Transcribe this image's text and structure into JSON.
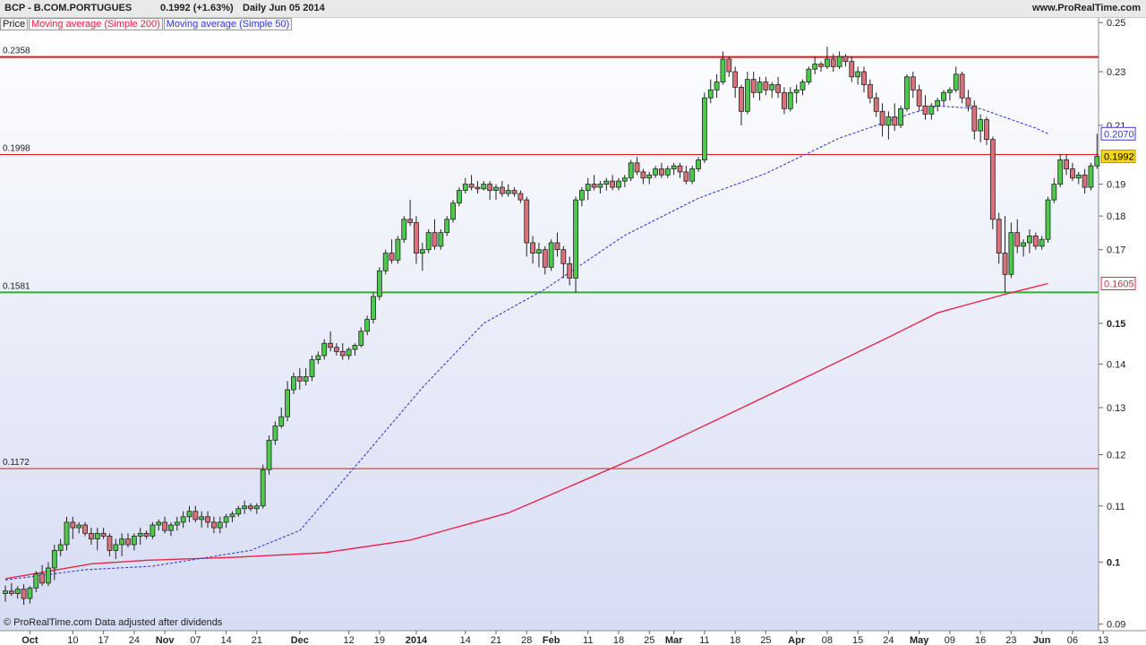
{
  "header": {
    "symbol": "BCP - B.COM.PORTUGUES",
    "quote": "0.1992 (+1.63%)",
    "period": "Daily  Jun 05 2014",
    "site": "www.ProRealTime.com"
  },
  "legend": {
    "price": "Price",
    "ma200": "Moving average (Simple 200)",
    "ma50": "Moving average (Simple 50)"
  },
  "footer": {
    "text": "© ProRealTime.com  Data adjusted after dividends"
  },
  "colors": {
    "up": "#4dc94d",
    "down": "#d9737b",
    "ma200": "#e8254c",
    "ma50": "#3a3ad6",
    "resistance": "#e11515",
    "support": "#2fae2f"
  },
  "chart_data": {
    "type": "candlestick",
    "scale": "log",
    "ylim": [
      0.089,
      0.252
    ],
    "yticks": [
      0.09,
      0.1,
      0.11,
      0.12,
      0.13,
      0.14,
      0.15,
      0.17,
      0.18,
      0.19,
      0.21,
      0.23,
      0.25
    ],
    "ytick_labels": [
      "0.09",
      "0.1",
      "0.11",
      "0.12",
      "0.13",
      "0.14",
      "0.15",
      "0.17",
      "0.18",
      "0.19",
      "0.21",
      "0.23",
      "0.25"
    ],
    "x_labels": [
      {
        "label": "Oct",
        "bar": 4
      },
      {
        "label": "10",
        "bar": 11
      },
      {
        "label": "17",
        "bar": 16
      },
      {
        "label": "24",
        "bar": 21
      },
      {
        "label": "Nov",
        "bar": 26
      },
      {
        "label": "07",
        "bar": 31
      },
      {
        "label": "14",
        "bar": 36
      },
      {
        "label": "21",
        "bar": 41
      },
      {
        "label": "Dec",
        "bar": 48
      },
      {
        "label": "12",
        "bar": 56
      },
      {
        "label": "19",
        "bar": 61
      },
      {
        "label": "2014",
        "bar": 67
      },
      {
        "label": "14",
        "bar": 75
      },
      {
        "label": "21",
        "bar": 80
      },
      {
        "label": "28",
        "bar": 85
      },
      {
        "label": "Feb",
        "bar": 89
      },
      {
        "label": "11",
        "bar": 95
      },
      {
        "label": "18",
        "bar": 100
      },
      {
        "label": "25",
        "bar": 105
      },
      {
        "label": "Mar",
        "bar": 109
      },
      {
        "label": "11",
        "bar": 114
      },
      {
        "label": "18",
        "bar": 119
      },
      {
        "label": "25",
        "bar": 124
      },
      {
        "label": "Apr",
        "bar": 129
      },
      {
        "label": "08",
        "bar": 134
      },
      {
        "label": "15",
        "bar": 139
      },
      {
        "label": "24",
        "bar": 144
      },
      {
        "label": "May",
        "bar": 149
      },
      {
        "label": "09",
        "bar": 154
      },
      {
        "label": "16",
        "bar": 159
      },
      {
        "label": "23",
        "bar": 164
      },
      {
        "label": "Jun",
        "bar": 169
      },
      {
        "label": "06",
        "bar": 174
      },
      {
        "label": "13",
        "bar": 179
      }
    ],
    "candles": [
      [
        0.0948,
        0.0961,
        0.0935,
        0.0952
      ],
      [
        0.0952,
        0.0965,
        0.0944,
        0.0948
      ],
      [
        0.0948,
        0.096,
        0.094,
        0.0955
      ],
      [
        0.0955,
        0.0963,
        0.093,
        0.094
      ],
      [
        0.094,
        0.096,
        0.0932,
        0.0957
      ],
      [
        0.0957,
        0.0985,
        0.095,
        0.098
      ],
      [
        0.098,
        0.0995,
        0.096,
        0.0965
      ],
      [
        0.0965,
        0.1,
        0.096,
        0.099
      ],
      [
        0.099,
        0.103,
        0.097,
        0.102
      ],
      [
        0.102,
        0.104,
        0.101,
        0.103
      ],
      [
        0.103,
        0.108,
        0.102,
        0.107
      ],
      [
        0.107,
        0.108,
        0.104,
        0.106
      ],
      [
        0.106,
        0.107,
        0.105,
        0.1065
      ],
      [
        0.1065,
        0.107,
        0.1045,
        0.105
      ],
      [
        0.105,
        0.106,
        0.103,
        0.104
      ],
      [
        0.104,
        0.106,
        0.102,
        0.105
      ],
      [
        0.105,
        0.106,
        0.104,
        0.1045
      ],
      [
        0.1045,
        0.105,
        0.101,
        0.102
      ],
      [
        0.102,
        0.104,
        0.1005,
        0.103
      ],
      [
        0.103,
        0.105,
        0.101,
        0.104
      ],
      [
        0.104,
        0.105,
        0.1025,
        0.103
      ],
      [
        0.103,
        0.105,
        0.102,
        0.1045
      ],
      [
        0.1045,
        0.106,
        0.103,
        0.105
      ],
      [
        0.105,
        0.1055,
        0.104,
        0.1045
      ],
      [
        0.1045,
        0.107,
        0.104,
        0.1065
      ],
      [
        0.1065,
        0.1075,
        0.1055,
        0.107
      ],
      [
        0.107,
        0.108,
        0.105,
        0.1055
      ],
      [
        0.1055,
        0.107,
        0.1045,
        0.1065
      ],
      [
        0.1065,
        0.108,
        0.1055,
        0.107
      ],
      [
        0.107,
        0.109,
        0.106,
        0.108
      ],
      [
        0.108,
        0.11,
        0.107,
        0.109
      ],
      [
        0.109,
        0.11,
        0.107,
        0.1075
      ],
      [
        0.1075,
        0.109,
        0.106,
        0.108
      ],
      [
        0.108,
        0.109,
        0.106,
        0.107
      ],
      [
        0.107,
        0.108,
        0.105,
        0.106
      ],
      [
        0.106,
        0.108,
        0.105,
        0.107
      ],
      [
        0.107,
        0.1085,
        0.106,
        0.108
      ],
      [
        0.108,
        0.109,
        0.107,
        0.1085
      ],
      [
        0.1085,
        0.11,
        0.108,
        0.1095
      ],
      [
        0.1095,
        0.111,
        0.1085,
        0.11
      ],
      [
        0.11,
        0.1105,
        0.109,
        0.1095
      ],
      [
        0.1095,
        0.1105,
        0.1085,
        0.11
      ],
      [
        0.11,
        0.118,
        0.1095,
        0.117
      ],
      [
        0.117,
        0.124,
        0.116,
        0.123
      ],
      [
        0.123,
        0.127,
        0.122,
        0.126
      ],
      [
        0.126,
        0.13,
        0.1255,
        0.128
      ],
      [
        0.128,
        0.136,
        0.127,
        0.134
      ],
      [
        0.134,
        0.138,
        0.133,
        0.137
      ],
      [
        0.137,
        0.139,
        0.134,
        0.136
      ],
      [
        0.136,
        0.139,
        0.135,
        0.137
      ],
      [
        0.137,
        0.142,
        0.136,
        0.141
      ],
      [
        0.141,
        0.143,
        0.14,
        0.142
      ],
      [
        0.142,
        0.146,
        0.141,
        0.145
      ],
      [
        0.145,
        0.148,
        0.143,
        0.144
      ],
      [
        0.144,
        0.145,
        0.142,
        0.143
      ],
      [
        0.143,
        0.145,
        0.141,
        0.142
      ],
      [
        0.142,
        0.144,
        0.141,
        0.1435
      ],
      [
        0.1435,
        0.145,
        0.142,
        0.1445
      ],
      [
        0.1445,
        0.149,
        0.144,
        0.148
      ],
      [
        0.148,
        0.152,
        0.147,
        0.151
      ],
      [
        0.151,
        0.158,
        0.15,
        0.157
      ],
      [
        0.157,
        0.165,
        0.156,
        0.164
      ],
      [
        0.164,
        0.17,
        0.163,
        0.169
      ],
      [
        0.169,
        0.173,
        0.166,
        0.167
      ],
      [
        0.167,
        0.174,
        0.166,
        0.173
      ],
      [
        0.173,
        0.18,
        0.172,
        0.179
      ],
      [
        0.179,
        0.185,
        0.177,
        0.178
      ],
      [
        0.178,
        0.18,
        0.166,
        0.169
      ],
      [
        0.169,
        0.172,
        0.164,
        0.17
      ],
      [
        0.17,
        0.176,
        0.169,
        0.175
      ],
      [
        0.175,
        0.179,
        0.17,
        0.171
      ],
      [
        0.171,
        0.176,
        0.17,
        0.175
      ],
      [
        0.175,
        0.18,
        0.174,
        0.179
      ],
      [
        0.179,
        0.185,
        0.178,
        0.184
      ],
      [
        0.184,
        0.189,
        0.183,
        0.188
      ],
      [
        0.188,
        0.192,
        0.187,
        0.19
      ],
      [
        0.19,
        0.193,
        0.188,
        0.189
      ],
      [
        0.189,
        0.191,
        0.187,
        0.1885
      ],
      [
        0.1885,
        0.191,
        0.188,
        0.19
      ],
      [
        0.19,
        0.191,
        0.185,
        0.188
      ],
      [
        0.188,
        0.19,
        0.185,
        0.189
      ],
      [
        0.189,
        0.191,
        0.186,
        0.187
      ],
      [
        0.187,
        0.19,
        0.186,
        0.188
      ],
      [
        0.188,
        0.189,
        0.186,
        0.187
      ],
      [
        0.187,
        0.188,
        0.184,
        0.185
      ],
      [
        0.185,
        0.186,
        0.168,
        0.172
      ],
      [
        0.172,
        0.174,
        0.166,
        0.169
      ],
      [
        0.169,
        0.172,
        0.165,
        0.17
      ],
      [
        0.17,
        0.171,
        0.163,
        0.165
      ],
      [
        0.165,
        0.173,
        0.164,
        0.172
      ],
      [
        0.172,
        0.175,
        0.168,
        0.17
      ],
      [
        0.17,
        0.171,
        0.162,
        0.166
      ],
      [
        0.166,
        0.168,
        0.16,
        0.162
      ],
      [
        0.162,
        0.186,
        0.158,
        0.185
      ],
      [
        0.185,
        0.189,
        0.183,
        0.188
      ],
      [
        0.188,
        0.192,
        0.185,
        0.19
      ],
      [
        0.19,
        0.193,
        0.188,
        0.189
      ],
      [
        0.189,
        0.191,
        0.187,
        0.19
      ],
      [
        0.19,
        0.192,
        0.188,
        0.191
      ],
      [
        0.191,
        0.193,
        0.188,
        0.189
      ],
      [
        0.189,
        0.192,
        0.188,
        0.191
      ],
      [
        0.191,
        0.193,
        0.189,
        0.192
      ],
      [
        0.192,
        0.198,
        0.191,
        0.197
      ],
      [
        0.197,
        0.199,
        0.193,
        0.194
      ],
      [
        0.194,
        0.195,
        0.19,
        0.192
      ],
      [
        0.192,
        0.194,
        0.19,
        0.193
      ],
      [
        0.193,
        0.196,
        0.192,
        0.195
      ],
      [
        0.195,
        0.197,
        0.192,
        0.193
      ],
      [
        0.193,
        0.196,
        0.192,
        0.195
      ],
      [
        0.195,
        0.197,
        0.193,
        0.196
      ],
      [
        0.196,
        0.197,
        0.192,
        0.194
      ],
      [
        0.194,
        0.196,
        0.19,
        0.191
      ],
      [
        0.191,
        0.196,
        0.19,
        0.195
      ],
      [
        0.195,
        0.199,
        0.194,
        0.198
      ],
      [
        0.198,
        0.222,
        0.197,
        0.22
      ],
      [
        0.22,
        0.227,
        0.218,
        0.223
      ],
      [
        0.223,
        0.229,
        0.22,
        0.226
      ],
      [
        0.226,
        0.238,
        0.225,
        0.235
      ],
      [
        0.235,
        0.236,
        0.228,
        0.23
      ],
      [
        0.23,
        0.232,
        0.22,
        0.224
      ],
      [
        0.224,
        0.225,
        0.21,
        0.215
      ],
      [
        0.215,
        0.23,
        0.214,
        0.227
      ],
      [
        0.227,
        0.23,
        0.22,
        0.222
      ],
      [
        0.222,
        0.228,
        0.219,
        0.226
      ],
      [
        0.226,
        0.228,
        0.221,
        0.223
      ],
      [
        0.223,
        0.226,
        0.22,
        0.225
      ],
      [
        0.225,
        0.228,
        0.22,
        0.222
      ],
      [
        0.222,
        0.224,
        0.214,
        0.216
      ],
      [
        0.216,
        0.224,
        0.215,
        0.222
      ],
      [
        0.222,
        0.225,
        0.218,
        0.223
      ],
      [
        0.223,
        0.227,
        0.221,
        0.226
      ],
      [
        0.226,
        0.232,
        0.225,
        0.231
      ],
      [
        0.231,
        0.236,
        0.229,
        0.233
      ],
      [
        0.233,
        0.234,
        0.23,
        0.232
      ],
      [
        0.232,
        0.24,
        0.231,
        0.235
      ],
      [
        0.235,
        0.237,
        0.23,
        0.232
      ],
      [
        0.232,
        0.238,
        0.231,
        0.236
      ],
      [
        0.236,
        0.237,
        0.232,
        0.234
      ],
      [
        0.234,
        0.236,
        0.226,
        0.228
      ],
      [
        0.228,
        0.232,
        0.225,
        0.23
      ],
      [
        0.23,
        0.232,
        0.222,
        0.225
      ],
      [
        0.225,
        0.227,
        0.218,
        0.22
      ],
      [
        0.22,
        0.222,
        0.213,
        0.215
      ],
      [
        0.215,
        0.218,
        0.206,
        0.21
      ],
      [
        0.21,
        0.215,
        0.205,
        0.213
      ],
      [
        0.213,
        0.218,
        0.208,
        0.21
      ],
      [
        0.21,
        0.217,
        0.209,
        0.216
      ],
      [
        0.216,
        0.229,
        0.215,
        0.228
      ],
      [
        0.228,
        0.23,
        0.22,
        0.223
      ],
      [
        0.223,
        0.225,
        0.215,
        0.217
      ],
      [
        0.217,
        0.221,
        0.212,
        0.214
      ],
      [
        0.214,
        0.218,
        0.212,
        0.217
      ],
      [
        0.217,
        0.22,
        0.215,
        0.219
      ],
      [
        0.219,
        0.223,
        0.217,
        0.222
      ],
      [
        0.222,
        0.224,
        0.219,
        0.223
      ],
      [
        0.223,
        0.232,
        0.222,
        0.229
      ],
      [
        0.229,
        0.23,
        0.218,
        0.22
      ],
      [
        0.22,
        0.223,
        0.215,
        0.217
      ],
      [
        0.217,
        0.219,
        0.205,
        0.208
      ],
      [
        0.208,
        0.214,
        0.204,
        0.212
      ],
      [
        0.212,
        0.213,
        0.203,
        0.205
      ],
      [
        0.205,
        0.206,
        0.176,
        0.179
      ],
      [
        0.179,
        0.181,
        0.166,
        0.169
      ],
      [
        0.169,
        0.18,
        0.158,
        0.163
      ],
      [
        0.163,
        0.178,
        0.162,
        0.175
      ],
      [
        0.175,
        0.179,
        0.169,
        0.171
      ],
      [
        0.171,
        0.173,
        0.168,
        0.172
      ],
      [
        0.172,
        0.176,
        0.169,
        0.174
      ],
      [
        0.174,
        0.175,
        0.17,
        0.171
      ],
      [
        0.171,
        0.174,
        0.17,
        0.173
      ],
      [
        0.173,
        0.186,
        0.172,
        0.185
      ],
      [
        0.185,
        0.192,
        0.184,
        0.19
      ],
      [
        0.19,
        0.2,
        0.189,
        0.198
      ],
      [
        0.198,
        0.2,
        0.193,
        0.195
      ],
      [
        0.195,
        0.197,
        0.191,
        0.192
      ],
      [
        0.192,
        0.194,
        0.19,
        0.193
      ],
      [
        0.193,
        0.195,
        0.187,
        0.189
      ],
      [
        0.189,
        0.197,
        0.188,
        0.196
      ],
      [
        0.196,
        0.207,
        0.195,
        0.1992
      ]
    ],
    "ma200": {
      "name": "Moving average (Simple 200)",
      "value_label": "0.1605",
      "points": [
        [
          0,
          0.0972
        ],
        [
          14,
          0.0997
        ],
        [
          23,
          0.1003
        ],
        [
          37,
          0.1008
        ],
        [
          52,
          0.1016
        ],
        [
          66,
          0.1038
        ],
        [
          82,
          0.1087
        ],
        [
          93,
          0.1142
        ],
        [
          105,
          0.1206
        ],
        [
          118,
          0.1286
        ],
        [
          131,
          0.1372
        ],
        [
          144,
          0.1465
        ],
        [
          152,
          0.1527
        ],
        [
          163,
          0.1576
        ],
        [
          170,
          0.1605
        ]
      ]
    },
    "ma50": {
      "name": "Moving average (Simple 50)",
      "value_label": "0.2070",
      "points": [
        [
          0,
          0.097
        ],
        [
          13,
          0.0987
        ],
        [
          24,
          0.0993
        ],
        [
          40,
          0.102
        ],
        [
          48,
          0.1055
        ],
        [
          58,
          0.119
        ],
        [
          68,
          0.1345
        ],
        [
          78,
          0.15
        ],
        [
          88,
          0.159
        ],
        [
          101,
          0.1742
        ],
        [
          113,
          0.1855
        ],
        [
          124,
          0.1935
        ],
        [
          136,
          0.2055
        ],
        [
          148,
          0.2145
        ],
        [
          152,
          0.217
        ],
        [
          159,
          0.216
        ],
        [
          168,
          0.209
        ],
        [
          170,
          0.207
        ]
      ]
    },
    "levels": [
      {
        "value": 0.2358,
        "label": "0.2358",
        "kind": "resistance"
      },
      {
        "value": 0.1998,
        "label": "0.1998",
        "kind": "resistance"
      },
      {
        "value": 0.1581,
        "label": "0.1581",
        "kind": "support"
      },
      {
        "value": 0.1172,
        "label": "0.1172",
        "kind": "resistance"
      }
    ],
    "last_price_label": "0.1992"
  }
}
